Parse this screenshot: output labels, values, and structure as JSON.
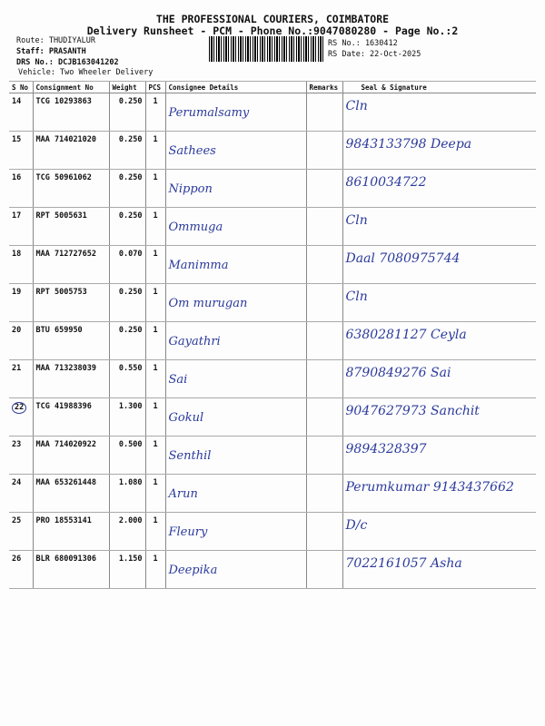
{
  "header": {
    "company": "THE PROFESSIONAL COURIERS, COIMBATORE",
    "subtitle": "Delivery Runsheet - PCM - Phone No.:9047080280 - Page No.:2",
    "route": "Route: THUDIYALUR",
    "staff": "Staff: PRASANTH",
    "drs": "DRS No.: DCJB163041202",
    "vehicle": "Vehicle: Two Wheeler Delivery",
    "rs_no": "RS No.: 1630412",
    "rs_date": "RS Date: 22-Oct-2025"
  },
  "table": {
    "columns": [
      "S No",
      "Consignment No",
      "Weight",
      "PCS",
      "Consignee Details",
      "Remarks",
      "Seal & Signature"
    ],
    "rows": [
      {
        "sno": "14",
        "cn": "TCG 10293863",
        "wt": "0.250",
        "pcs": "1",
        "consignee": "Perumalsamy",
        "remarks": "",
        "sig": "Cln"
      },
      {
        "sno": "15",
        "cn": "MAA 714021020",
        "wt": "0.250",
        "pcs": "1",
        "consignee": "Sathees",
        "remarks": "",
        "sig": "9843133798 Deepa"
      },
      {
        "sno": "16",
        "cn": "TCG 50961062",
        "wt": "0.250",
        "pcs": "1",
        "consignee": "Nippon",
        "remarks": "",
        "sig": "8610034722"
      },
      {
        "sno": "17",
        "cn": "RPT 5005631",
        "wt": "0.250",
        "pcs": "1",
        "consignee": "Ommuga",
        "remarks": "",
        "sig": "Cln"
      },
      {
        "sno": "18",
        "cn": "MAA 712727652",
        "wt": "0.070",
        "pcs": "1",
        "consignee": "Manimma",
        "remarks": "",
        "sig": "Daal 7080975744"
      },
      {
        "sno": "19",
        "cn": "RPT 5005753",
        "wt": "0.250",
        "pcs": "1",
        "consignee": "Om murugan",
        "remarks": "",
        "sig": "Cln"
      },
      {
        "sno": "20",
        "cn": "BTU 659950",
        "wt": "0.250",
        "pcs": "1",
        "consignee": "Gayathri",
        "remarks": "",
        "sig": "6380281127 Ceyla"
      },
      {
        "sno": "21",
        "cn": "MAA 713238039",
        "wt": "0.550",
        "pcs": "1",
        "consignee": "Sai",
        "remarks": "",
        "sig": "8790849276 Sai"
      },
      {
        "sno": "22",
        "cn": "TCG 41988396",
        "wt": "1.300",
        "pcs": "1",
        "consignee": "Gokul",
        "remarks": "",
        "sig": "9047627973 Sanchit"
      },
      {
        "sno": "23",
        "cn": "MAA 714020922",
        "wt": "0.500",
        "pcs": "1",
        "consignee": "Senthil",
        "remarks": "",
        "sig": "9894328397"
      },
      {
        "sno": "24",
        "cn": "MAA 653261448",
        "wt": "1.080",
        "pcs": "1",
        "consignee": "Arun",
        "remarks": "",
        "sig": "Perumkumar 9143437662"
      },
      {
        "sno": "25",
        "cn": "PRO 18553141",
        "wt": "2.000",
        "pcs": "1",
        "consignee": "Fleury",
        "remarks": "",
        "sig": "D/c"
      },
      {
        "sno": "26",
        "cn": "BLR 680091306",
        "wt": "1.150",
        "pcs": "1",
        "consignee": "Deepika",
        "remarks": "",
        "sig": "7022161057 Asha"
      }
    ]
  }
}
